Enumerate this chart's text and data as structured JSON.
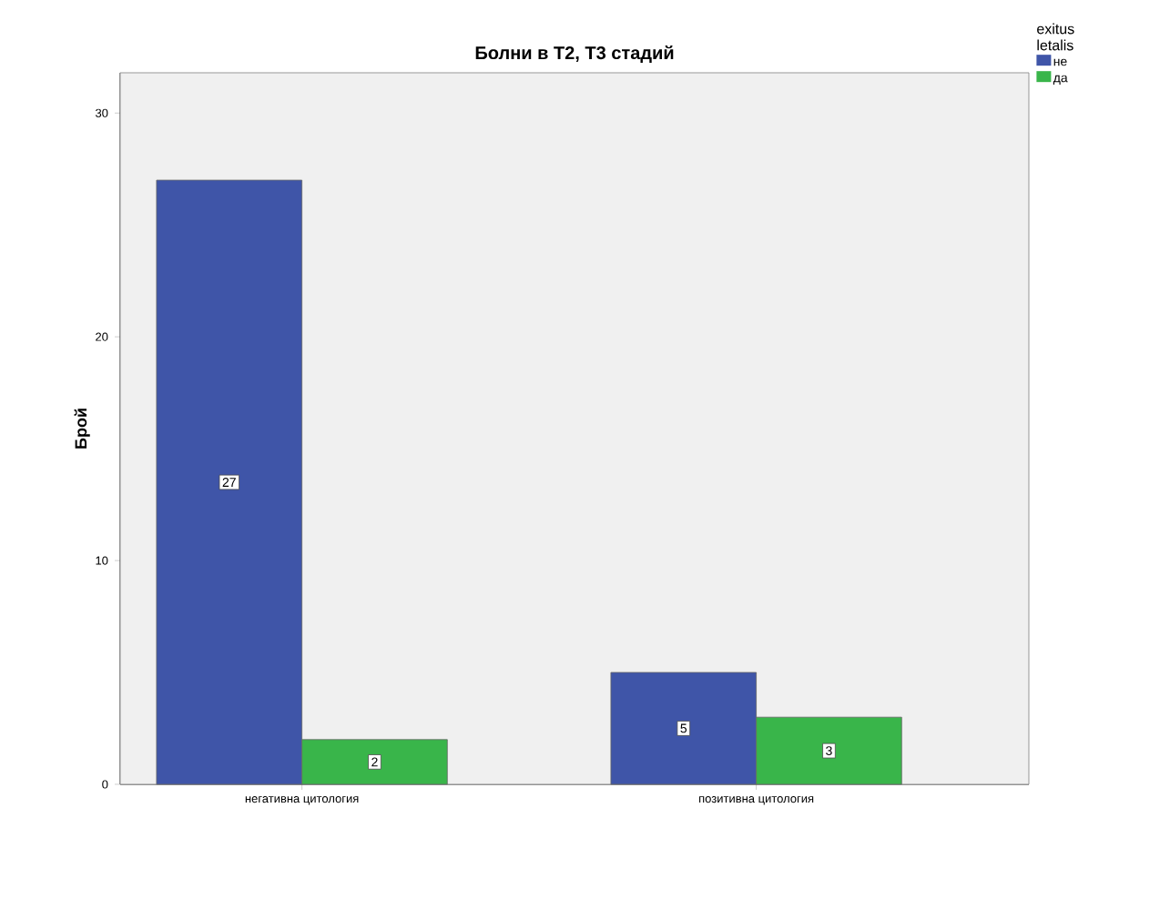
{
  "chart_data": {
    "type": "bar",
    "title": "Болни в Т2, Т3 стадий",
    "ylabel": "Брой",
    "legend_title": "exitus letalis",
    "categories": [
      "негативна цитология",
      "позитивна цитология"
    ],
    "series": [
      {
        "name": "не",
        "color": "#3f55a8",
        "values": [
          27,
          5
        ]
      },
      {
        "name": "да",
        "color": "#39b54a",
        "values": [
          2,
          3
        ]
      }
    ],
    "ylim": [
      0,
      31.8
    ],
    "yticks": [
      0,
      10,
      20,
      30
    ],
    "grid": false,
    "legend": "top right",
    "data_labels": true
  }
}
